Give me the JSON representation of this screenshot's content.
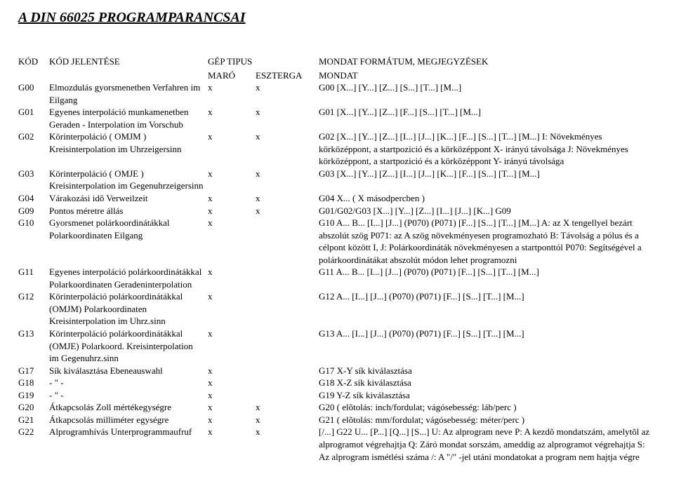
{
  "title": "A DIN 66025 PROGRAMPARANCSAI",
  "head": {
    "code": "KÓD",
    "desc": "KÓD JELENTÉSE",
    "maro_top": "GÉP TIPUS",
    "maro": "MARÓ",
    "eszt": "ESZTERGA",
    "note_top": "MONDAT FORMÁTUM, MEGJEGYZÉSEK",
    "note": "MONDAT"
  },
  "rows": [
    {
      "code": "G00",
      "desc": "Elmozdulás gyorsmenetben Verfahren im Eilgang",
      "maro": "x",
      "eszt": "x",
      "note": "G00 [X...] [Y...] [Z...] [S...] [T...] [M...]"
    },
    {
      "code": "G01",
      "desc": "Egyenes interpoláció munkamenetben Geraden - Interpolation im Vorschub",
      "maro": "x",
      "eszt": "x",
      "note": "G01 [X...] [Y...] [Z...] [F...] [S...] [T...] [M...]"
    },
    {
      "code": "G02",
      "desc": "Körinterpoláció ( OMJM ) Kreisinterpolation im Uhrzeigersinn",
      "maro": "x",
      "eszt": "x",
      "note": "G02 [X...] [Y...] [Z...] [I...] [J...] [K...] [F...] [S...] [T...] [M...]       I: Növekményes körközéppont, a startpozició és a körközéppont     X- irányú távolsága       J: Növekményes körközéppont, a startpozició és a körközéppont Y- irányú távolsága"
    },
    {
      "code": "G03",
      "desc": "Körinterpoláció ( OMJE ) Kreisinterpolation im Gegenuhrzeigersinn",
      "maro": "x",
      "eszt": "x",
      "note": "G03 [X...] [Y...] [Z...] [I...] [J...] [K...] [F...] [S...] [T...] [M...]"
    },
    {
      "code": "G04",
      "desc": "Várakozási idõ Verweilzeit",
      "maro": "x",
      "eszt": "x",
      "note": "G04 X...                             ( X másodpercben )"
    },
    {
      "code": "G09",
      "desc": "Pontos méretre állás",
      "maro": "x",
      "eszt": "x",
      "note": "G01/G02/G03 [X...] [Y...] [Z...] [I...] [J...] [K...] G09"
    },
    {
      "code": "G10",
      "desc": "Gyorsmenet polárkoordinátákkal Polarkoordinaten Eilgang",
      "maro": "x",
      "eszt": "",
      "note": "G10 A... B... [I...] [J...] (P070) (P071) [F...] [S...] [T...] [M...]        A: az X tengellyel bezárt abszolút szög           P071: az A szög növekményesen programozható B: Távolság a pólus és a célpont között               I, J: Polárkoordináták növekményesen a startponttól        P070: Segítségével a polárkoordinátákat abszolút módon lehet programozni"
    },
    {
      "code": "G11",
      "desc": "Egyenes interpoláció polárkoordinátákkal Polarkoordinaten Geradeninterpolation",
      "maro": "x",
      "eszt": "",
      "note": "G11 A... B... [I...] [J...] (P070) (P071) [F...] [S...] [T...] [M...]"
    },
    {
      "code": "G12",
      "desc": "Körinterpoláció polárkoordinátákkal (OMJM) Polarkoordinaten Kreisinterpolation im Uhrz.sinn",
      "maro": "x",
      "eszt": "",
      "note": "G12 A... [I...] [J...] (P070) (P071) [F...] [S...] [T...] [M...]"
    },
    {
      "code": "G13",
      "desc": "Körinterpoláció polárkoordinátákkal (OMJE) Polarkoord. Kreisinterpolation im Gegenuhrz.sinn",
      "maro": "x",
      "eszt": "",
      "note": "G13 A... [I...] [J...] (P070) (P071) [F...] [S...] [T...] [M...]"
    },
    {
      "code": "G17",
      "desc": "Sík kiválasztása Ebeneauswahl",
      "maro": "x",
      "eszt": "",
      "note": "G17          X-Y sík kiválasztása"
    },
    {
      "code": "G18",
      "desc": "      -    \"    -",
      "maro": "x",
      "eszt": "",
      "note": "G18          X-Z sík kiválasztása"
    },
    {
      "code": "G19",
      "desc": "      -    \"    -",
      "maro": "x",
      "eszt": "",
      "note": "G19          Y-Z sík kiválasztása"
    },
    {
      "code": "G20",
      "desc": "Átkapcsolás Zoll mértékegységre",
      "maro": "x",
      "eszt": "x",
      "note": "G20          ( elõtolás: inch/fordulat;  vágósebesség: láb/perc )"
    },
    {
      "code": "G21",
      "desc": "Átkapcsolás milliméter egységre",
      "maro": "x",
      "eszt": "x",
      "note": "G21          ( elõtolás: mm/fordulat;  vágósebesség: méter/perc )"
    },
    {
      "code": "G22",
      "desc": "Alprogramhívás Unterprogrammaufruf",
      "maro": "x",
      "eszt": "x",
      "note": "[/...] G22 U... [P...] [Q...] [S...]         U: Az alprogram neve         P: A kezdõ mondatszám, amelytõl az alprogramot végrehajtja          Q: Záró mondat sorszám, ameddig az alprogramot végrehajtja       S: Az alprogram ismétlési száma          /: A \"/\" -jel utáni mondatokat a program nem hajtja végre"
    }
  ]
}
